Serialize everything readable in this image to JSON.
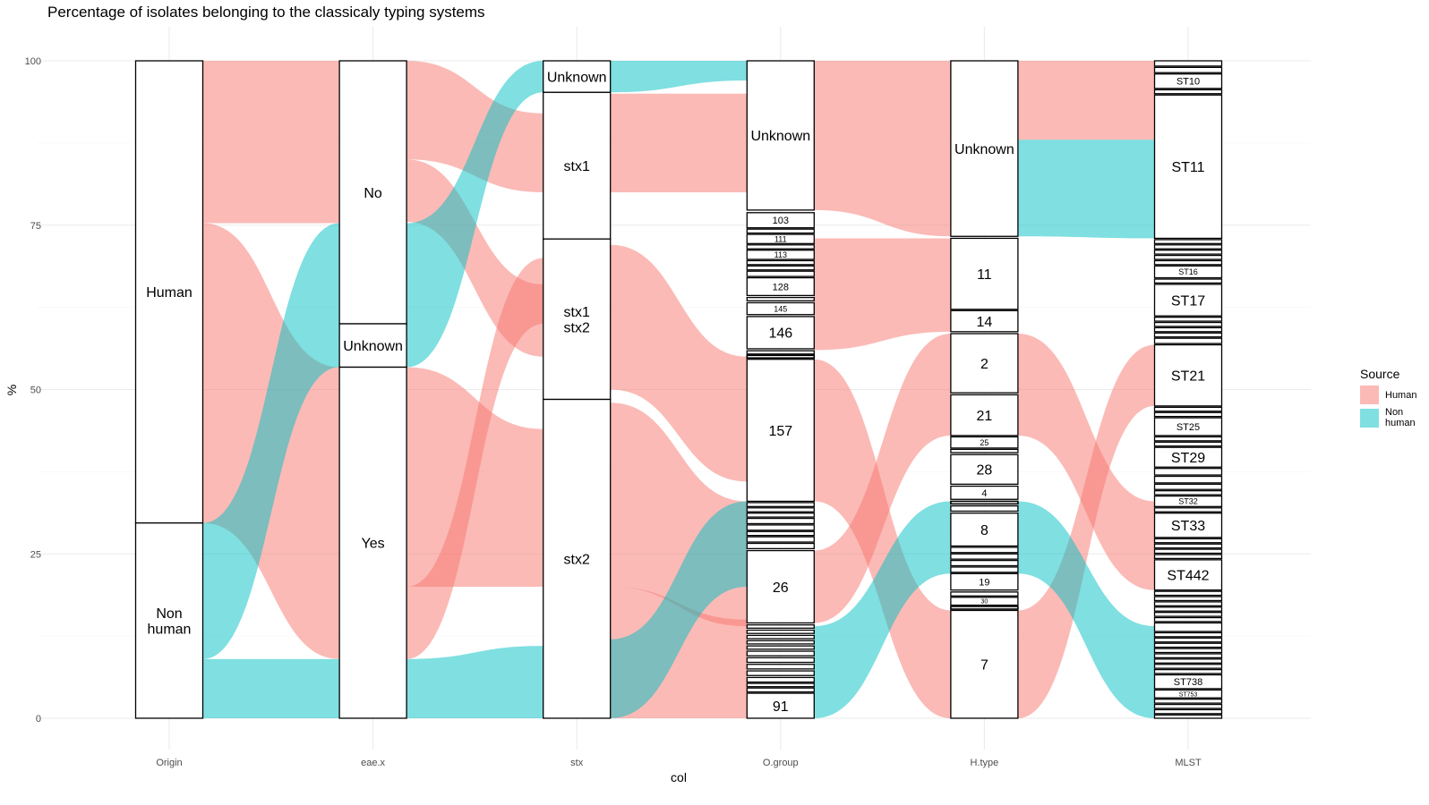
{
  "chart_data": {
    "type": "alluvial",
    "title": "Percentage of isolates belonging to the classicaly typing systems",
    "xlabel": "col",
    "ylabel": "%",
    "ylim": [
      0,
      100
    ],
    "yticks": [
      0,
      25,
      50,
      75,
      100
    ],
    "grid": true,
    "legend": {
      "title": "Source",
      "position": "right",
      "items": [
        {
          "label": "Human",
          "color": "#F8766D"
        },
        {
          "label": "Non human",
          "color": "#00BFC4"
        }
      ]
    },
    "axes": [
      {
        "name": "Origin",
        "strata": [
          {
            "label": "Human",
            "y0": 29.7,
            "y1": 100
          },
          {
            "label": "Non\nhuman",
            "y0": 0,
            "y1": 29.7
          }
        ]
      },
      {
        "name": "eae.x",
        "strata": [
          {
            "label": "No",
            "y0": 60,
            "y1": 100
          },
          {
            "label": "Unknown",
            "y0": 53.4,
            "y1": 60
          },
          {
            "label": "Yes",
            "y0": 0,
            "y1": 53.4
          }
        ]
      },
      {
        "name": "stx",
        "strata": [
          {
            "label": "Unknown",
            "y0": 95.2,
            "y1": 100
          },
          {
            "label": "stx1",
            "y0": 72.9,
            "y1": 95.2
          },
          {
            "label": "stx1\nstx2",
            "y0": 48.5,
            "y1": 72.9
          },
          {
            "label": "stx2",
            "y0": 0,
            "y1": 48.5
          }
        ]
      },
      {
        "name": "O.group",
        "strata": [
          {
            "label": "Unknown",
            "y0": 77.3,
            "y1": 100
          },
          {
            "label": "103",
            "y0": 74.6,
            "y1": 76.9
          },
          {
            "label": "",
            "y0": 73.8,
            "y1": 74.4
          },
          {
            "label": "111",
            "y0": 72.2,
            "y1": 73.6
          },
          {
            "label": "",
            "y0": 71.4,
            "y1": 72.0
          },
          {
            "label": "113",
            "y0": 69.8,
            "y1": 71.2
          },
          {
            "label": "",
            "y0": 69.0,
            "y1": 69.6
          },
          {
            "label": "",
            "y0": 68.2,
            "y1": 68.8
          },
          {
            "label": "",
            "y0": 67.2,
            "y1": 68.0
          },
          {
            "label": "128",
            "y0": 64.3,
            "y1": 67.0
          },
          {
            "label": "",
            "y0": 63.5,
            "y1": 64.0
          },
          {
            "label": "145",
            "y0": 61.4,
            "y1": 63.2
          },
          {
            "label": "146",
            "y0": 56.2,
            "y1": 61.1
          },
          {
            "label": "",
            "y0": 55.4,
            "y1": 55.9
          },
          {
            "label": "",
            "y0": 54.8,
            "y1": 55.2
          },
          {
            "label": "157",
            "y0": 33.0,
            "y1": 54.6
          },
          {
            "label": "",
            "y0": 32.2,
            "y1": 32.8
          },
          {
            "label": "",
            "y0": 31.4,
            "y1": 32.0
          },
          {
            "label": "",
            "y0": 30.6,
            "y1": 31.2
          },
          {
            "label": "",
            "y0": 29.6,
            "y1": 30.4
          },
          {
            "label": "",
            "y0": 28.6,
            "y1": 29.4
          },
          {
            "label": "",
            "y0": 27.8,
            "y1": 28.4
          },
          {
            "label": "",
            "y0": 26.8,
            "y1": 27.6
          },
          {
            "label": "",
            "y0": 25.8,
            "y1": 26.6
          },
          {
            "label": "26",
            "y0": 14.5,
            "y1": 25.5
          },
          {
            "label": "",
            "y0": 13.7,
            "y1": 14.2
          },
          {
            "label": "",
            "y0": 12.9,
            "y1": 13.4
          },
          {
            "label": "",
            "y0": 12.1,
            "y1": 12.6
          },
          {
            "label": "",
            "y0": 11.3,
            "y1": 11.8
          },
          {
            "label": "",
            "y0": 10.5,
            "y1": 11.0
          },
          {
            "label": "",
            "y0": 9.5,
            "y1": 10.2
          },
          {
            "label": "",
            "y0": 8.5,
            "y1": 9.2
          },
          {
            "label": "",
            "y0": 7.5,
            "y1": 8.2
          },
          {
            "label": "",
            "y0": 6.5,
            "y1": 7.2
          },
          {
            "label": "",
            "y0": 5.5,
            "y1": 6.2
          },
          {
            "label": "",
            "y0": 4.8,
            "y1": 5.3
          },
          {
            "label": "",
            "y0": 4.0,
            "y1": 4.6
          },
          {
            "label": "91",
            "y0": 0,
            "y1": 3.8
          }
        ]
      },
      {
        "name": "H.type",
        "strata": [
          {
            "label": "Unknown",
            "y0": 73.3,
            "y1": 100
          },
          {
            "label": "11",
            "y0": 62.2,
            "y1": 73.0
          },
          {
            "label": "14",
            "y0": 58.8,
            "y1": 62.0
          },
          {
            "label": "2",
            "y0": 49.5,
            "y1": 58.5
          },
          {
            "label": "21",
            "y0": 43.0,
            "y1": 49.2
          },
          {
            "label": "25",
            "y0": 41.1,
            "y1": 42.8
          },
          {
            "label": "",
            "y0": 40.4,
            "y1": 40.9
          },
          {
            "label": "28",
            "y0": 35.6,
            "y1": 40.1
          },
          {
            "label": "4",
            "y0": 33.3,
            "y1": 35.3
          },
          {
            "label": "",
            "y0": 32.6,
            "y1": 33.0
          },
          {
            "label": "",
            "y0": 31.5,
            "y1": 32.3
          },
          {
            "label": "8",
            "y0": 26.2,
            "y1": 31.2
          },
          {
            "label": "",
            "y0": 25.2,
            "y1": 26.0
          },
          {
            "label": "",
            "y0": 24.2,
            "y1": 25.0
          },
          {
            "label": "",
            "y0": 23.2,
            "y1": 24.0
          },
          {
            "label": "",
            "y0": 22.2,
            "y1": 23.0
          },
          {
            "label": "19",
            "y0": 19.5,
            "y1": 22.0
          },
          {
            "label": "",
            "y0": 18.6,
            "y1": 19.2
          },
          {
            "label": "30",
            "y0": 17.2,
            "y1": 18.4
          },
          {
            "label": "",
            "y0": 16.6,
            "y1": 17.0
          },
          {
            "label": "7",
            "y0": 0,
            "y1": 16.4
          }
        ]
      },
      {
        "name": "MLST",
        "strata": [
          {
            "label": "",
            "y0": 99.2,
            "y1": 100
          },
          {
            "label": "",
            "y0": 98.2,
            "y1": 99.0
          },
          {
            "label": "ST10",
            "y0": 95.8,
            "y1": 98.0
          },
          {
            "label": "",
            "y0": 95.0,
            "y1": 95.6
          },
          {
            "label": "ST11",
            "y0": 73.0,
            "y1": 94.8
          },
          {
            "label": "",
            "y0": 72.2,
            "y1": 72.8
          },
          {
            "label": "",
            "y0": 71.4,
            "y1": 72.0
          },
          {
            "label": "",
            "y0": 70.6,
            "y1": 71.2
          },
          {
            "label": "",
            "y0": 69.8,
            "y1": 70.4
          },
          {
            "label": "",
            "y0": 69.0,
            "y1": 69.6
          },
          {
            "label": "ST16",
            "y0": 67.0,
            "y1": 68.8
          },
          {
            "label": "",
            "y0": 66.2,
            "y1": 66.8
          },
          {
            "label": "ST17",
            "y0": 61.2,
            "y1": 66.0
          },
          {
            "label": "",
            "y0": 60.4,
            "y1": 61.0
          },
          {
            "label": "",
            "y0": 59.6,
            "y1": 60.2
          },
          {
            "label": "",
            "y0": 58.8,
            "y1": 59.4
          },
          {
            "label": "",
            "y0": 58.0,
            "y1": 58.6
          },
          {
            "label": "",
            "y0": 57.0,
            "y1": 57.8
          },
          {
            "label": "ST21",
            "y0": 47.5,
            "y1": 56.8
          },
          {
            "label": "",
            "y0": 46.7,
            "y1": 47.3
          },
          {
            "label": "",
            "y0": 45.9,
            "y1": 46.5
          },
          {
            "label": "ST25",
            "y0": 43.0,
            "y1": 45.7
          },
          {
            "label": "",
            "y0": 42.2,
            "y1": 42.8
          },
          {
            "label": "",
            "y0": 41.4,
            "y1": 42.0
          },
          {
            "label": "ST29",
            "y0": 38.2,
            "y1": 41.2
          },
          {
            "label": "",
            "y0": 37.0,
            "y1": 38.0
          },
          {
            "label": "",
            "y0": 35.8,
            "y1": 36.8
          },
          {
            "label": "",
            "y0": 34.8,
            "y1": 35.6
          },
          {
            "label": "",
            "y0": 34.0,
            "y1": 34.6
          },
          {
            "label": "ST32",
            "y0": 32.2,
            "y1": 33.8
          },
          {
            "label": "",
            "y0": 31.4,
            "y1": 32.0
          },
          {
            "label": "ST33",
            "y0": 27.5,
            "y1": 31.2
          },
          {
            "label": "",
            "y0": 26.7,
            "y1": 27.3
          },
          {
            "label": "",
            "y0": 25.9,
            "y1": 26.5
          },
          {
            "label": "",
            "y0": 25.1,
            "y1": 25.7
          },
          {
            "label": "",
            "y0": 24.3,
            "y1": 24.9
          },
          {
            "label": "ST442",
            "y0": 19.5,
            "y1": 24.1
          },
          {
            "label": "",
            "y0": 18.7,
            "y1": 19.3
          },
          {
            "label": "",
            "y0": 17.9,
            "y1": 18.5
          },
          {
            "label": "",
            "y0": 17.1,
            "y1": 17.7
          },
          {
            "label": "",
            "y0": 16.3,
            "y1": 16.9
          },
          {
            "label": "",
            "y0": 15.5,
            "y1": 16.1
          },
          {
            "label": "",
            "y0": 14.7,
            "y1": 15.3
          },
          {
            "label": "",
            "y0": 13.2,
            "y1": 14.5
          },
          {
            "label": "",
            "y0": 12.4,
            "y1": 13.0
          },
          {
            "label": "",
            "y0": 11.6,
            "y1": 12.2
          },
          {
            "label": "",
            "y0": 10.8,
            "y1": 11.4
          },
          {
            "label": "",
            "y0": 10.0,
            "y1": 10.6
          },
          {
            "label": "",
            "y0": 9.2,
            "y1": 9.8
          },
          {
            "label": "",
            "y0": 8.4,
            "y1": 9.0
          },
          {
            "label": "",
            "y0": 7.6,
            "y1": 8.2
          },
          {
            "label": "",
            "y0": 6.8,
            "y1": 7.4
          },
          {
            "label": "ST738",
            "y0": 4.5,
            "y1": 6.6
          },
          {
            "label": "ST753",
            "y0": 3.1,
            "y1": 4.3
          },
          {
            "label": "",
            "y0": 2.3,
            "y1": 2.9
          },
          {
            "label": "",
            "y0": 1.5,
            "y1": 2.1
          },
          {
            "label": "",
            "y0": 0.7,
            "y1": 1.3
          },
          {
            "label": "",
            "y0": 0,
            "y1": 0.5
          }
        ]
      }
    ],
    "flows": [
      {
        "from_axis": 0,
        "from": [
          75.3,
          100
        ],
        "to": [
          75.3,
          100
        ],
        "source": "Human"
      },
      {
        "from_axis": 0,
        "from": [
          29.7,
          75.3
        ],
        "to": [
          9.0,
          53.4
        ],
        "source": "Human"
      },
      {
        "from_axis": 0,
        "from": [
          9.0,
          29.7
        ],
        "to": [
          53.4,
          75.3
        ],
        "source": "Non human"
      },
      {
        "from_axis": 0,
        "from": [
          0,
          9.0
        ],
        "to": [
          0,
          9.0
        ],
        "source": "Non human"
      },
      {
        "from_axis": 1,
        "from": [
          85,
          100
        ],
        "to": [
          80,
          92
        ],
        "source": "Human"
      },
      {
        "from_axis": 1,
        "from": [
          75.5,
          85
        ],
        "to": [
          55,
          66
        ],
        "source": "Human"
      },
      {
        "from_axis": 1,
        "from": [
          53.4,
          75.3
        ],
        "to": [
          95.2,
          100
        ],
        "source": "Non human"
      },
      {
        "from_axis": 1,
        "from": [
          20,
          53.4
        ],
        "to": [
          20,
          44
        ],
        "source": "Human"
      },
      {
        "from_axis": 1,
        "from": [
          9,
          20
        ],
        "to": [
          60,
          70
        ],
        "source": "Human"
      },
      {
        "from_axis": 1,
        "from": [
          0,
          9
        ],
        "to": [
          0,
          11
        ],
        "source": "Non human"
      },
      {
        "from_axis": 2,
        "from": [
          95.2,
          100
        ],
        "to": [
          97,
          100
        ],
        "source": "Non human"
      },
      {
        "from_axis": 2,
        "from": [
          80,
          95
        ],
        "to": [
          80,
          95
        ],
        "source": "Human"
      },
      {
        "from_axis": 2,
        "from": [
          50,
          72
        ],
        "to": [
          36,
          55
        ],
        "source": "Human"
      },
      {
        "from_axis": 2,
        "from": [
          20,
          48
        ],
        "to": [
          14,
          33
        ],
        "source": "Human"
      },
      {
        "from_axis": 2,
        "from": [
          0,
          20
        ],
        "to": [
          0,
          15
        ],
        "source": "Human"
      },
      {
        "from_axis": 2,
        "from": [
          0,
          12
        ],
        "to": [
          20,
          33
        ],
        "source": "Non human"
      },
      {
        "from_axis": 3,
        "from": [
          77.3,
          100
        ],
        "to": [
          73.3,
          100
        ],
        "source": "Human"
      },
      {
        "from_axis": 3,
        "from": [
          33,
          54.6
        ],
        "to": [
          0,
          16.4
        ],
        "source": "Human"
      },
      {
        "from_axis": 3,
        "from": [
          14.5,
          25.5
        ],
        "to": [
          43,
          58.5
        ],
        "source": "Human"
      },
      {
        "from_axis": 3,
        "from": [
          0,
          14
        ],
        "to": [
          22,
          33
        ],
        "source": "Non human"
      },
      {
        "from_axis": 3,
        "from": [
          56,
          73
        ],
        "to": [
          58.8,
          73
        ],
        "source": "Human"
      },
      {
        "from_axis": 4,
        "from": [
          88,
          100
        ],
        "to": [
          88,
          100
        ],
        "source": "Human"
      },
      {
        "from_axis": 4,
        "from": [
          73.3,
          88
        ],
        "to": [
          73,
          88
        ],
        "source": "Non human"
      },
      {
        "from_axis": 4,
        "from": [
          0,
          16.4
        ],
        "to": [
          47.5,
          56.8
        ],
        "source": "Human"
      },
      {
        "from_axis": 4,
        "from": [
          43,
          58.5
        ],
        "to": [
          19.5,
          33
        ],
        "source": "Human"
      },
      {
        "from_axis": 4,
        "from": [
          22,
          33
        ],
        "to": [
          0,
          14
        ],
        "source": "Non human"
      }
    ]
  }
}
